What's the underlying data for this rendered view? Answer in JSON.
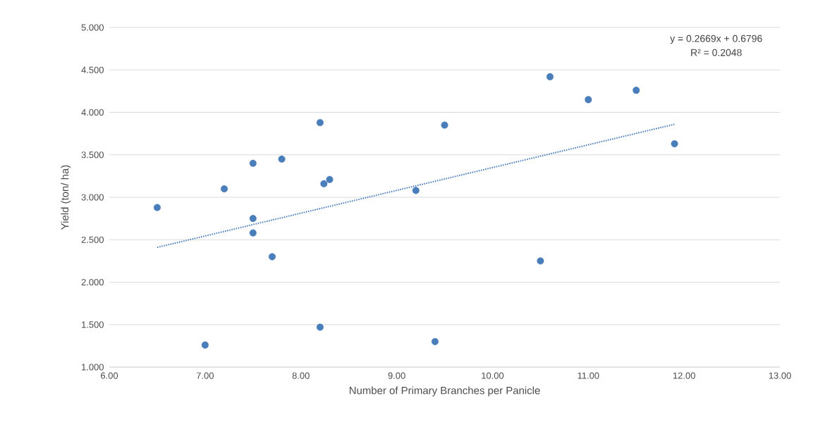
{
  "chart_data": {
    "type": "scatter",
    "xlabel": "Number of Primary Branches per Panicle",
    "ylabel": "Yield (ton/ ha)",
    "x": [
      6.5,
      7.0,
      7.2,
      7.5,
      7.5,
      7.5,
      7.7,
      7.8,
      8.2,
      8.2,
      8.24,
      8.3,
      9.2,
      9.4,
      9.5,
      10.5,
      10.6,
      11.0,
      11.5,
      11.9
    ],
    "series": [
      {
        "color": "#4a7ebb",
        "marker": "circle",
        "values": [
          2.88,
          1.26,
          3.1,
          3.4,
          2.75,
          2.58,
          2.3,
          3.45,
          3.88,
          1.47,
          3.16,
          3.21,
          3.08,
          1.3,
          3.85,
          2.25,
          4.42,
          4.15,
          4.26,
          3.63
        ]
      },
      {
        "type": "line",
        "color": "#4a7ebb",
        "line_style": "dotted",
        "marker": "none",
        "x": [
          6.5,
          11.9
        ],
        "values": [
          2.41,
          3.86
        ]
      }
    ],
    "annotations": [
      "y = 0.2669x + 0.6796",
      "R² = 0.2048"
    ],
    "xlim": [
      6,
      13
    ],
    "ylim": [
      1,
      5
    ],
    "xticks": [
      {
        "value": 6,
        "label": "6.00"
      },
      {
        "value": 7,
        "label": "7.00"
      },
      {
        "value": 8,
        "label": "8.00"
      },
      {
        "value": 9,
        "label": "9.00"
      },
      {
        "value": 10,
        "label": "10.00"
      },
      {
        "value": 11,
        "label": "11.00"
      },
      {
        "value": 12,
        "label": "12.00"
      },
      {
        "value": 13,
        "label": "13.00"
      }
    ],
    "yticks": [
      {
        "value": 1,
        "label": "1.000"
      },
      {
        "value": 1.5,
        "label": "1.500"
      },
      {
        "value": 2,
        "label": "2.000"
      },
      {
        "value": 2.5,
        "label": "2.500"
      },
      {
        "value": 3,
        "label": "3.000"
      },
      {
        "value": 3.5,
        "label": "3.500"
      },
      {
        "value": 4,
        "label": "4.000"
      },
      {
        "value": 4.5,
        "label": "4.500"
      },
      {
        "value": 5,
        "label": "5.000"
      }
    ],
    "grid": "y"
  }
}
